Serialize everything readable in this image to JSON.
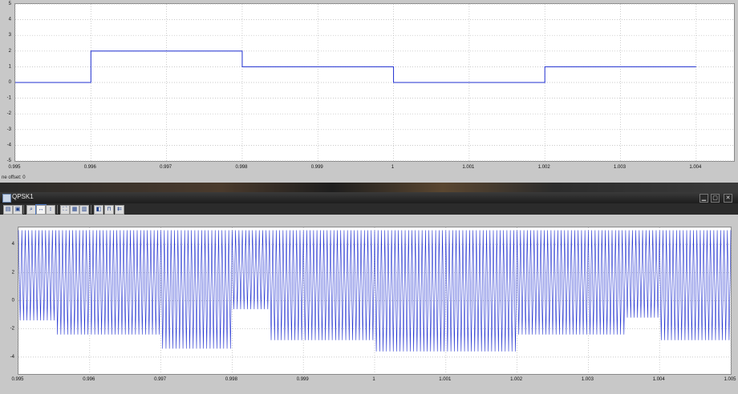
{
  "windows": {
    "top_scope": {
      "time_offset_label": "ne offset: 0"
    },
    "bottom_scope": {
      "title": "QPSK1",
      "toolbar_icons": [
        "print-icon",
        "parameters-icon",
        "zoom-icon",
        "zoom-x-icon",
        "zoom-y-icon",
        "autoscale-icon",
        "save-axes-icon",
        "restore-axes-icon",
        "floating-scope-icon",
        "lock-icon",
        "signal-selection-icon"
      ],
      "window_buttons": [
        "minimize-icon",
        "maximize-icon",
        "close-icon"
      ],
      "window_button_glyphs": [
        "▁",
        "▢",
        "✕"
      ]
    }
  },
  "chart_data": [
    {
      "type": "line",
      "style": "step",
      "x_ticks": [
        "0.995",
        "0.996",
        "0.997",
        "0.998",
        "0.999",
        "1",
        "1.001",
        "1.002",
        "1.003",
        "1.004"
      ],
      "y_ticks": [
        "5",
        "4",
        "3",
        "2",
        "1",
        "0",
        "-1",
        "-2",
        "-3",
        "-4",
        "-5"
      ],
      "xlim": [
        0.995,
        1.0045
      ],
      "ylim": [
        -5,
        5
      ],
      "grid": true,
      "color": "#1f2fd0",
      "steps": [
        {
          "x0": 0.995,
          "x1": 0.996,
          "y": 0
        },
        {
          "x0": 0.996,
          "x1": 0.998,
          "y": 2
        },
        {
          "x0": 0.998,
          "x1": 1.0,
          "y": 1
        },
        {
          "x0": 1.0,
          "x1": 1.002,
          "y": 0
        },
        {
          "x0": 1.002,
          "x1": 1.004,
          "y": 1
        }
      ]
    },
    {
      "type": "line",
      "style": "modulated",
      "x_ticks": [
        "0.995",
        "0.996",
        "0.997",
        "0.998",
        "0.999",
        "1",
        "1.001",
        "1.002",
        "1.003",
        "1.004",
        "1.005"
      ],
      "y_ticks": [
        "4",
        "2",
        "0",
        "-2",
        "-4"
      ],
      "y_tick_values": [
        4,
        2,
        0,
        -2,
        -4
      ],
      "xlim": [
        0.995,
        1.005
      ],
      "ylim": [
        -5.2,
        5.2
      ],
      "grid": true,
      "color": "#1f2fd0",
      "amplitude": 5,
      "inner_levels": [
        {
          "x0": 0.995,
          "x1": 0.9955,
          "a": 1.4
        },
        {
          "x0": 0.9955,
          "x1": 0.997,
          "a": 2.4
        },
        {
          "x0": 0.997,
          "x1": 0.998,
          "a": 3.4
        },
        {
          "x0": 0.998,
          "x1": 0.9985,
          "a": 0.6
        },
        {
          "x0": 0.9985,
          "x1": 1.0,
          "a": 2.8
        },
        {
          "x0": 1.0,
          "x1": 1.002,
          "a": 3.6
        },
        {
          "x0": 1.002,
          "x1": 1.0035,
          "a": 2.4
        },
        {
          "x0": 1.0035,
          "x1": 1.004,
          "a": 1.2
        },
        {
          "x0": 1.004,
          "x1": 1.005,
          "a": 2.8
        }
      ]
    }
  ]
}
